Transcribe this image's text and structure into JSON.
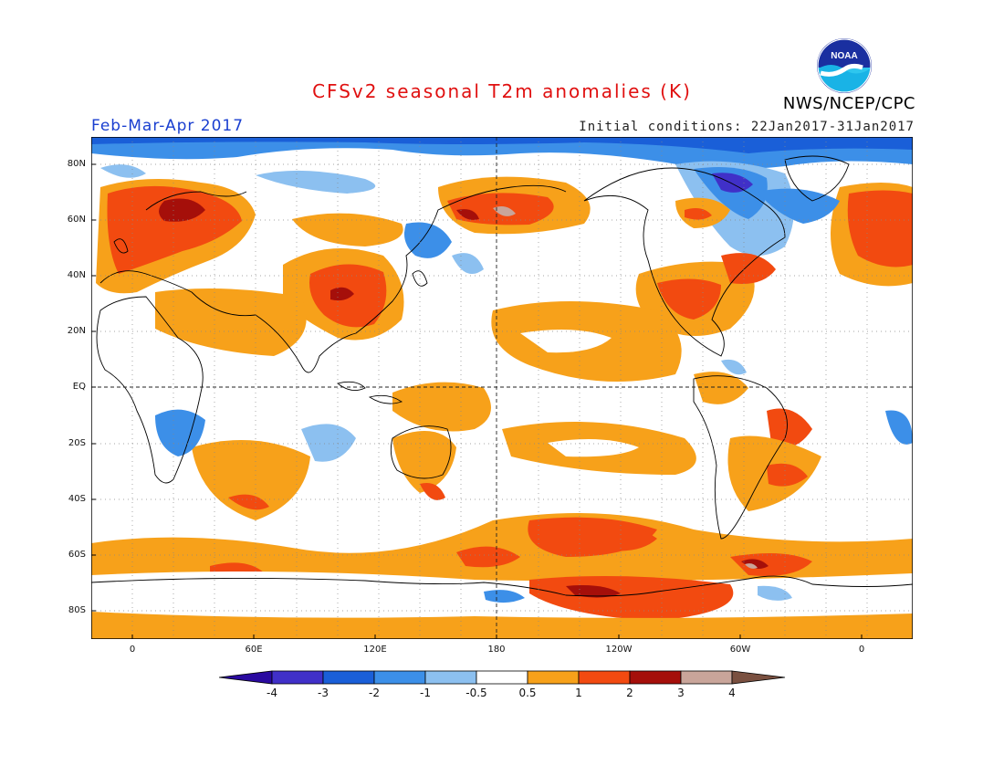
{
  "header": {
    "title": "CFSv2 seasonal T2m anomalies (K)",
    "period": "Feb-Mar-Apr 2017",
    "initial_conditions": "Initial conditions: 22Jan2017-31Jan2017",
    "agency": "NWS/NCEP/CPC",
    "logo_text": "NOAA"
  },
  "map": {
    "projection": "cylindrical equidistant",
    "lat_range": [
      -90,
      90
    ],
    "lon_range": [
      -20,
      380
    ],
    "lat_labels": [
      "80N",
      "60N",
      "40N",
      "20N",
      "EQ",
      "20S",
      "40S",
      "60S",
      "80S"
    ],
    "lon_labels": [
      "0",
      "60E",
      "120E",
      "180",
      "120W",
      "60W",
      "0"
    ],
    "gridlines": "dotted"
  },
  "colorbar": {
    "tick_labels": [
      "-4",
      "-3",
      "-2",
      "-1",
      "-0.5",
      "0.5",
      "1",
      "2",
      "3",
      "4"
    ],
    "colors": [
      "#2a0aa0",
      "#4030c8",
      "#1a5fd8",
      "#3c8fe8",
      "#8cc0f0",
      "#ffffff",
      "#f7a11a",
      "#f24a10",
      "#a50f0a",
      "#c9a59a",
      "#7a5040"
    ]
  },
  "colors": {
    "title": "#e01010",
    "period": "#1a3fd0",
    "warm_light": "#f7a11a",
    "warm_mid": "#f24a10",
    "warm_dark": "#a50f0a",
    "warm_extreme": "#c9a59a",
    "cool_light": "#8cc0f0",
    "cool_mid": "#3c8fe8",
    "cool_dark": "#1a5fd8",
    "cool_extreme": "#4030c8"
  }
}
